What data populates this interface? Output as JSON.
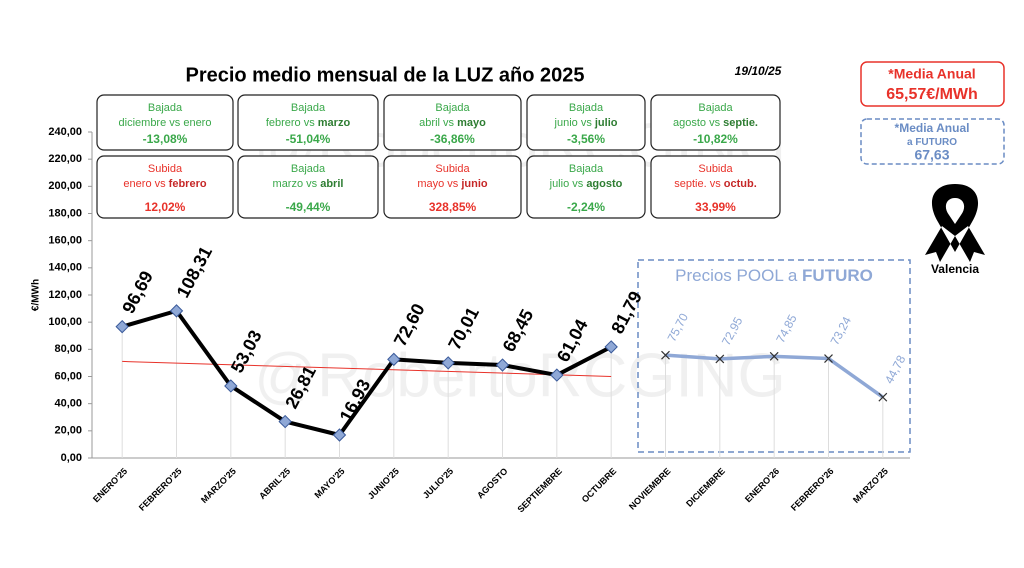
{
  "chart_data": {
    "type": "line",
    "title": "Precio medio mensual de la LUZ año 2025",
    "date": "19/10/25",
    "watermark": "@RobertoRCGING",
    "y_label": "€/MWh",
    "categories": [
      "ENERO'25",
      "FEBRERO'25",
      "MARZO'25",
      "ABRIL'25",
      "MAYO'25",
      "JUNIO'25",
      "JULIO'25",
      "AGOSTO",
      "SEPTIEMBRE",
      "OCTUBRE",
      "NOVIEMBRE",
      "DICIEMBRE",
      "ENERO'26",
      "FEBRERO'26",
      "MARZO'25"
    ],
    "series": [
      {
        "color": "#000000",
        "marker": "diamond",
        "values": [
          96.69,
          108.31,
          53.03,
          26.81,
          16.93,
          72.6,
          70.01,
          68.45,
          61.04,
          81.79,
          null,
          null,
          null,
          null,
          null
        ],
        "value_labels": [
          "96,69",
          "108,31",
          "53,03",
          "26,81",
          "16,93",
          "72,60",
          "70,01",
          "68,45",
          "61,04",
          "81,79",
          null,
          null,
          null,
          null,
          null
        ]
      },
      {
        "color": "#8fa8d6",
        "marker": "x",
        "values": [
          null,
          null,
          null,
          null,
          null,
          null,
          null,
          null,
          null,
          null,
          75.7,
          72.95,
          74.85,
          73.24,
          44.78
        ],
        "value_labels": [
          null,
          null,
          null,
          null,
          null,
          null,
          null,
          null,
          null,
          null,
          "75,70",
          "72,95",
          "74,85",
          "73,24",
          "44,78"
        ]
      }
    ],
    "trendline_color": "#e8322a",
    "ylim": [
      0,
      240
    ],
    "yticks": [
      {
        "value": 0,
        "label": "0,00"
      },
      {
        "value": 20,
        "label": "20,00"
      },
      {
        "value": 40,
        "label": "40,00"
      },
      {
        "value": 60,
        "label": "60,00"
      },
      {
        "value": 80,
        "label": "80,00"
      },
      {
        "value": 100,
        "label": "100,00"
      },
      {
        "value": 120,
        "label": "120,00"
      },
      {
        "value": 140,
        "label": "140,00"
      },
      {
        "value": 160,
        "label": "160,00"
      },
      {
        "value": 180,
        "label": "180,00"
      },
      {
        "value": 200,
        "label": "200,00"
      },
      {
        "value": 220,
        "label": "220,00"
      },
      {
        "value": 240,
        "label": "240,00"
      }
    ],
    "future_box": {
      "title": "Precios POOL a ",
      "title_bold": "FUTURO"
    },
    "boxes": [
      {
        "head": "Bajada",
        "pre": "diciembre vs enero",
        "bold": null,
        "pct": "-13,08%",
        "color": "#3aa84a"
      },
      {
        "head": "Bajada",
        "pre": "febrero vs ",
        "bold": "marzo",
        "pct": "-51,04%",
        "color": "#3aa84a"
      },
      {
        "head": "Bajada",
        "pre": "abril vs ",
        "bold": "mayo",
        "pct": "-36,86%",
        "color": "#3aa84a"
      },
      {
        "head": "Bajada",
        "pre": "junio vs ",
        "bold": "julio",
        "pct": "-3,56%",
        "color": "#3aa84a"
      },
      {
        "head": "Bajada",
        "pre": "agosto vs ",
        "bold": "septie.",
        "pct": "-10,82%",
        "color": "#3aa84a"
      },
      {
        "head": "Subida",
        "pre": "enero vs ",
        "bold": "febrero",
        "pct": "12,02%",
        "color": "#e8322a"
      },
      {
        "head": "Bajada",
        "pre": "marzo vs ",
        "bold": "abril",
        "pct": "-49,44%",
        "color": "#3aa84a"
      },
      {
        "head": "Subida",
        "pre": "mayo vs ",
        "bold": "junio",
        "pct": "328,85%",
        "color": "#e8322a"
      },
      {
        "head": "Bajada",
        "pre": "julio vs ",
        "bold": "agosto",
        "pct": "-2,24%",
        "color": "#3aa84a"
      },
      {
        "head": "Subida",
        "pre": "septie. vs ",
        "bold": "octub.",
        "pct": "33,99%",
        "color": "#e8322a"
      }
    ],
    "annual": {
      "label": "*Media Anual",
      "value": "65,57€/MWh"
    },
    "annual_future": {
      "label": "*Media Anual",
      "line2_pre": "a ",
      "line2": "FUTURO",
      "value": "67,63"
    },
    "place": "Valencia"
  }
}
